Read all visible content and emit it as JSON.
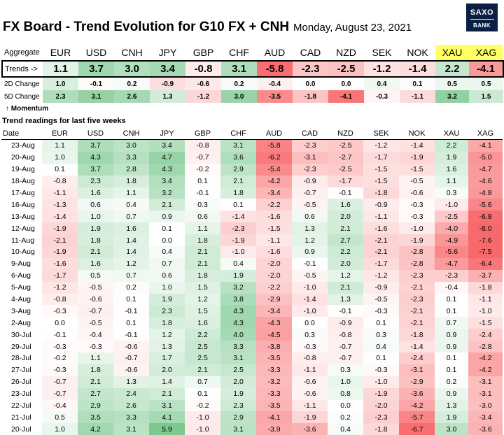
{
  "header": {
    "title": "FX Board - Trend Evolution for G10 FX + CNH",
    "date": "Monday, August 23, 2021",
    "logo_line1": "SAXO",
    "logo_line2": "BANK"
  },
  "aggregate": {
    "label": "Aggregate",
    "currencies": [
      "EUR",
      "USD",
      "CNH",
      "JPY",
      "GBP",
      "CHF",
      "AUD",
      "CAD",
      "NZD",
      "SEK",
      "NOK",
      "XAU",
      "XAG"
    ],
    "trends_label": "Trends ->",
    "trends": [
      "1.1",
      "3.7",
      "3.0",
      "3.4",
      "-0.8",
      "3.1",
      "-5.8",
      "-2.3",
      "-2.5",
      "-1.2",
      "-1.4",
      "2.2",
      "-4.1"
    ],
    "change_2d_label": "2D Change",
    "change_2d": [
      "1.0",
      "-0.1",
      "0.2",
      "-0.9",
      "-0.6",
      "0.2",
      "-0.4",
      "0.0",
      "0.0",
      "0.4",
      "0.1",
      "0.5",
      "0.5"
    ],
    "change_5d_label": "5D Change",
    "change_5d": [
      "2.3",
      "3.1",
      "2.6",
      "1.3",
      "-1.2",
      "3.0",
      "-3.5",
      "-1.8",
      "-4.1",
      "-0.3",
      "-1.1",
      "3.2",
      "1.5"
    ],
    "momentum_label": "↑ Momentum"
  },
  "history": {
    "title": "Trend readings for last five weeks",
    "date_header": "Date",
    "currencies": [
      "EUR",
      "USD",
      "CNH",
      "JPY",
      "GBP",
      "CHF",
      "AUD",
      "CAD",
      "NZD",
      "SEK",
      "NOK",
      "XAU",
      "XAG"
    ],
    "rows": [
      {
        "date": "23-Aug",
        "values": [
          "1.1",
          "3.7",
          "3.0",
          "3.4",
          "-0.8",
          "3.1",
          "-5.8",
          "-2.3",
          "-2.5",
          "-1.2",
          "-1.4",
          "2.2",
          "-4.1"
        ]
      },
      {
        "date": "20-Aug",
        "values": [
          "1.0",
          "4.3",
          "3.3",
          "4.7",
          "-0.7",
          "3.6",
          "-6.2",
          "-3.1",
          "-2.7",
          "-1.7",
          "-1.9",
          "1.9",
          "-5.0"
        ]
      },
      {
        "date": "19-Aug",
        "values": [
          "0.1",
          "3.7",
          "2.8",
          "4.3",
          "-0.2",
          "2.9",
          "-5.4",
          "-2.3",
          "-2.5",
          "-1.5",
          "-1.5",
          "1.6",
          "-4.7"
        ]
      },
      {
        "date": "18-Aug",
        "values": [
          "-0.8",
          "2.3",
          "1.8",
          "3.4",
          "0.1",
          "2.1",
          "-4.2",
          "-0.9",
          "-1.7",
          "-1.5",
          "-0.5",
          "1.1",
          "-4.6"
        ]
      },
      {
        "date": "17-Aug",
        "values": [
          "-1.1",
          "1.6",
          "1.1",
          "3.2",
          "-0.1",
          "1.8",
          "-3.4",
          "-0.7",
          "-0.1",
          "-1.8",
          "-0.6",
          "0.3",
          "-4.8"
        ]
      },
      {
        "date": "16-Aug",
        "values": [
          "-1.3",
          "0.6",
          "0.4",
          "2.1",
          "0.3",
          "0.1",
          "-2.2",
          "-0.5",
          "1.6",
          "-0.9",
          "-0.3",
          "-1.0",
          "-5.6"
        ]
      },
      {
        "date": "13-Aug",
        "values": [
          "-1.4",
          "1.0",
          "0.7",
          "0.9",
          "0.6",
          "-1.4",
          "-1.6",
          "0.6",
          "2.0",
          "-1.1",
          "-0.3",
          "-2.5",
          "-6.8"
        ]
      },
      {
        "date": "12-Aug",
        "values": [
          "-1.9",
          "1.9",
          "1.6",
          "0.1",
          "1.1",
          "-2.3",
          "-1.5",
          "1.3",
          "2.1",
          "-1.6",
          "-1.0",
          "-4.0",
          "-8.0"
        ]
      },
      {
        "date": "11-Aug",
        "values": [
          "-2.1",
          "1.8",
          "1.4",
          "0.0",
          "1.8",
          "-1.9",
          "-1.1",
          "1.2",
          "2.7",
          "-2.1",
          "-1.9",
          "-4.9",
          "-7.6"
        ]
      },
      {
        "date": "10-Aug",
        "values": [
          "-1.9",
          "2.1",
          "1.4",
          "0.4",
          "2.1",
          "-1.0",
          "-1.6",
          "0.9",
          "2.2",
          "-2.1",
          "-2.8",
          "-5.6",
          "-7.5"
        ]
      },
      {
        "date": "9-Aug",
        "values": [
          "-1.6",
          "1.6",
          "1.2",
          "0.7",
          "2.1",
          "0.4",
          "-2.0",
          "-0.1",
          "2.0",
          "-1.7",
          "-2.8",
          "-4.7",
          "-6.4"
        ]
      },
      {
        "date": "6-Aug",
        "values": [
          "-1.7",
          "0.5",
          "0.7",
          "0.6",
          "1.8",
          "1.9",
          "-2.0",
          "-0.5",
          "1.2",
          "-1.2",
          "-2.3",
          "-2.3",
          "-3.7"
        ]
      },
      {
        "date": "5-Aug",
        "values": [
          "-1.2",
          "-0.5",
          "0.2",
          "1.0",
          "1.5",
          "3.2",
          "-2.2",
          "-1.0",
          "2.1",
          "-0.9",
          "-2.1",
          "-0.4",
          "-1.8"
        ]
      },
      {
        "date": "4-Aug",
        "values": [
          "-0.8",
          "-0.6",
          "0.1",
          "1.9",
          "1.2",
          "3.8",
          "-2.9",
          "-1.4",
          "1.3",
          "-0.5",
          "-2.3",
          "0.1",
          "-1.1"
        ]
      },
      {
        "date": "3-Aug",
        "values": [
          "-0.3",
          "-0.7",
          "-0.1",
          "2.3",
          "1.5",
          "4.3",
          "-3.4",
          "-1.0",
          "-0.1",
          "-0.3",
          "-2.1",
          "0.1",
          "-1.0"
        ]
      },
      {
        "date": "2-Aug",
        "values": [
          "0.0",
          "-0.5",
          "0.1",
          "1.8",
          "1.6",
          "4.3",
          "-4.3",
          "0.0",
          "-0.9",
          "0.1",
          "-2.1",
          "0.7",
          "-1.5"
        ]
      },
      {
        "date": "30-Jul",
        "values": [
          "-0.1",
          "-0.4",
          "-0.1",
          "1.2",
          "2.2",
          "4.0",
          "-4.5",
          "0.3",
          "-0.8",
          "0.3",
          "-1.8",
          "0.9",
          "-2.4"
        ]
      },
      {
        "date": "29-Jul",
        "values": [
          "-0.3",
          "-0.3",
          "-0.6",
          "1.3",
          "2.5",
          "3.3",
          "-3.8",
          "-0.3",
          "-0.7",
          "0.4",
          "-1.4",
          "0.9",
          "-2.8"
        ]
      },
      {
        "date": "28-Jul",
        "values": [
          "-0.2",
          "1.1",
          "-0.7",
          "1.7",
          "2.5",
          "3.1",
          "-3.5",
          "-0.8",
          "-0.7",
          "0.1",
          "-2.4",
          "0.1",
          "-4.2"
        ]
      },
      {
        "date": "27-Jul",
        "values": [
          "-0.3",
          "1.8",
          "-0.6",
          "2.0",
          "2.1",
          "2.5",
          "-3.3",
          "-1.1",
          "0.3",
          "-0.3",
          "-3.1",
          "0.1",
          "-4.2"
        ]
      },
      {
        "date": "26-Jul",
        "values": [
          "-0.7",
          "2.1",
          "1.3",
          "1.4",
          "0.7",
          "2.0",
          "-3.2",
          "-0.6",
          "1.0",
          "-1.0",
          "-2.9",
          "0.2",
          "-3.1"
        ]
      },
      {
        "date": "23-Jul",
        "values": [
          "-0.7",
          "2.7",
          "2.4",
          "2.1",
          "0.1",
          "1.9",
          "-3.3",
          "-0.6",
          "0.8",
          "-1.9",
          "-3.6",
          "0.9",
          "-3.1"
        ]
      },
      {
        "date": "22-Jul",
        "values": [
          "-0.4",
          "2.9",
          "2.6",
          "3.1",
          "-0.2",
          "2.3",
          "-3.5",
          "-1.1",
          "0.0",
          "-2.0",
          "-4.2",
          "1.3",
          "-3.0"
        ]
      },
      {
        "date": "21-Jul",
        "values": [
          "0.5",
          "3.5",
          "3.3",
          "4.1",
          "-1.0",
          "2.9",
          "-4.1",
          "-1.9",
          "0.2",
          "-2.3",
          "-5.7",
          "1.9",
          "-3.4"
        ]
      },
      {
        "date": "20-Jul",
        "values": [
          "1.0",
          "4.2",
          "3.1",
          "5.9",
          "-1.0",
          "3.1",
          "-3.9",
          "-3.6",
          "0.4",
          "-1.8",
          "-6.7",
          "3.0",
          "-3.6"
        ]
      }
    ]
  },
  "colors": {
    "positive": "#63be7b",
    "negative": "#f8696b",
    "neutral": "#ffffff",
    "metal_header": "#ffff66",
    "logo_bg": "#0a1f44"
  }
}
